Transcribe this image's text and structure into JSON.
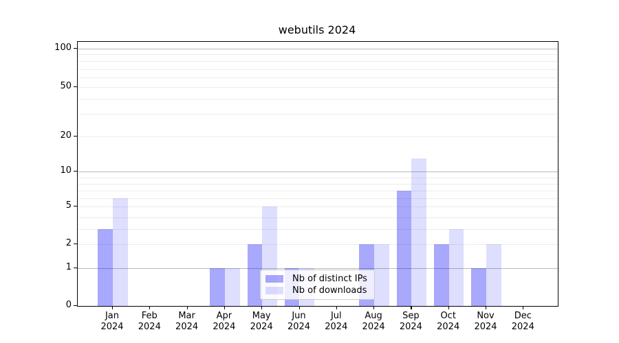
{
  "chart_data": {
    "type": "bar",
    "title": "webutils 2024",
    "categories": [
      "Jan",
      "Feb",
      "Mar",
      "Apr",
      "May",
      "Jun",
      "Jul",
      "Aug",
      "Sep",
      "Oct",
      "Nov",
      "Dec"
    ],
    "categories_year": "2024",
    "series": [
      {
        "name": "Nb of distinct IPs",
        "color_hex": "#a8a8fb",
        "fill": "rgba(0,0,245,0.34)",
        "values": [
          3,
          0,
          0,
          1,
          2,
          1,
          0,
          2,
          7,
          2,
          1,
          0
        ]
      },
      {
        "name": "Nb of downloads",
        "color_hex": "#dedefd",
        "fill": "rgba(0,0,245,0.13)",
        "values": [
          6,
          0,
          0,
          1,
          5,
          1,
          0,
          2,
          13,
          3,
          2,
          0
        ]
      }
    ],
    "yaxis": {
      "scale": "symlog",
      "labeled_ticks": [
        0,
        1,
        2,
        5,
        10,
        20,
        50,
        100
      ],
      "major_grid_values": [
        1,
        10,
        100
      ],
      "minor_grid_values": [
        2,
        3,
        4,
        5,
        6,
        7,
        8,
        9,
        20,
        30,
        40,
        50,
        60,
        70,
        80,
        90
      ],
      "range_top": 100,
      "range_bottom": 0
    },
    "xlabel": "",
    "ylabel": "",
    "grid": true,
    "legend": {
      "position": "lower center",
      "entries": [
        "Nb of distinct IPs",
        "Nb of downloads"
      ]
    }
  }
}
